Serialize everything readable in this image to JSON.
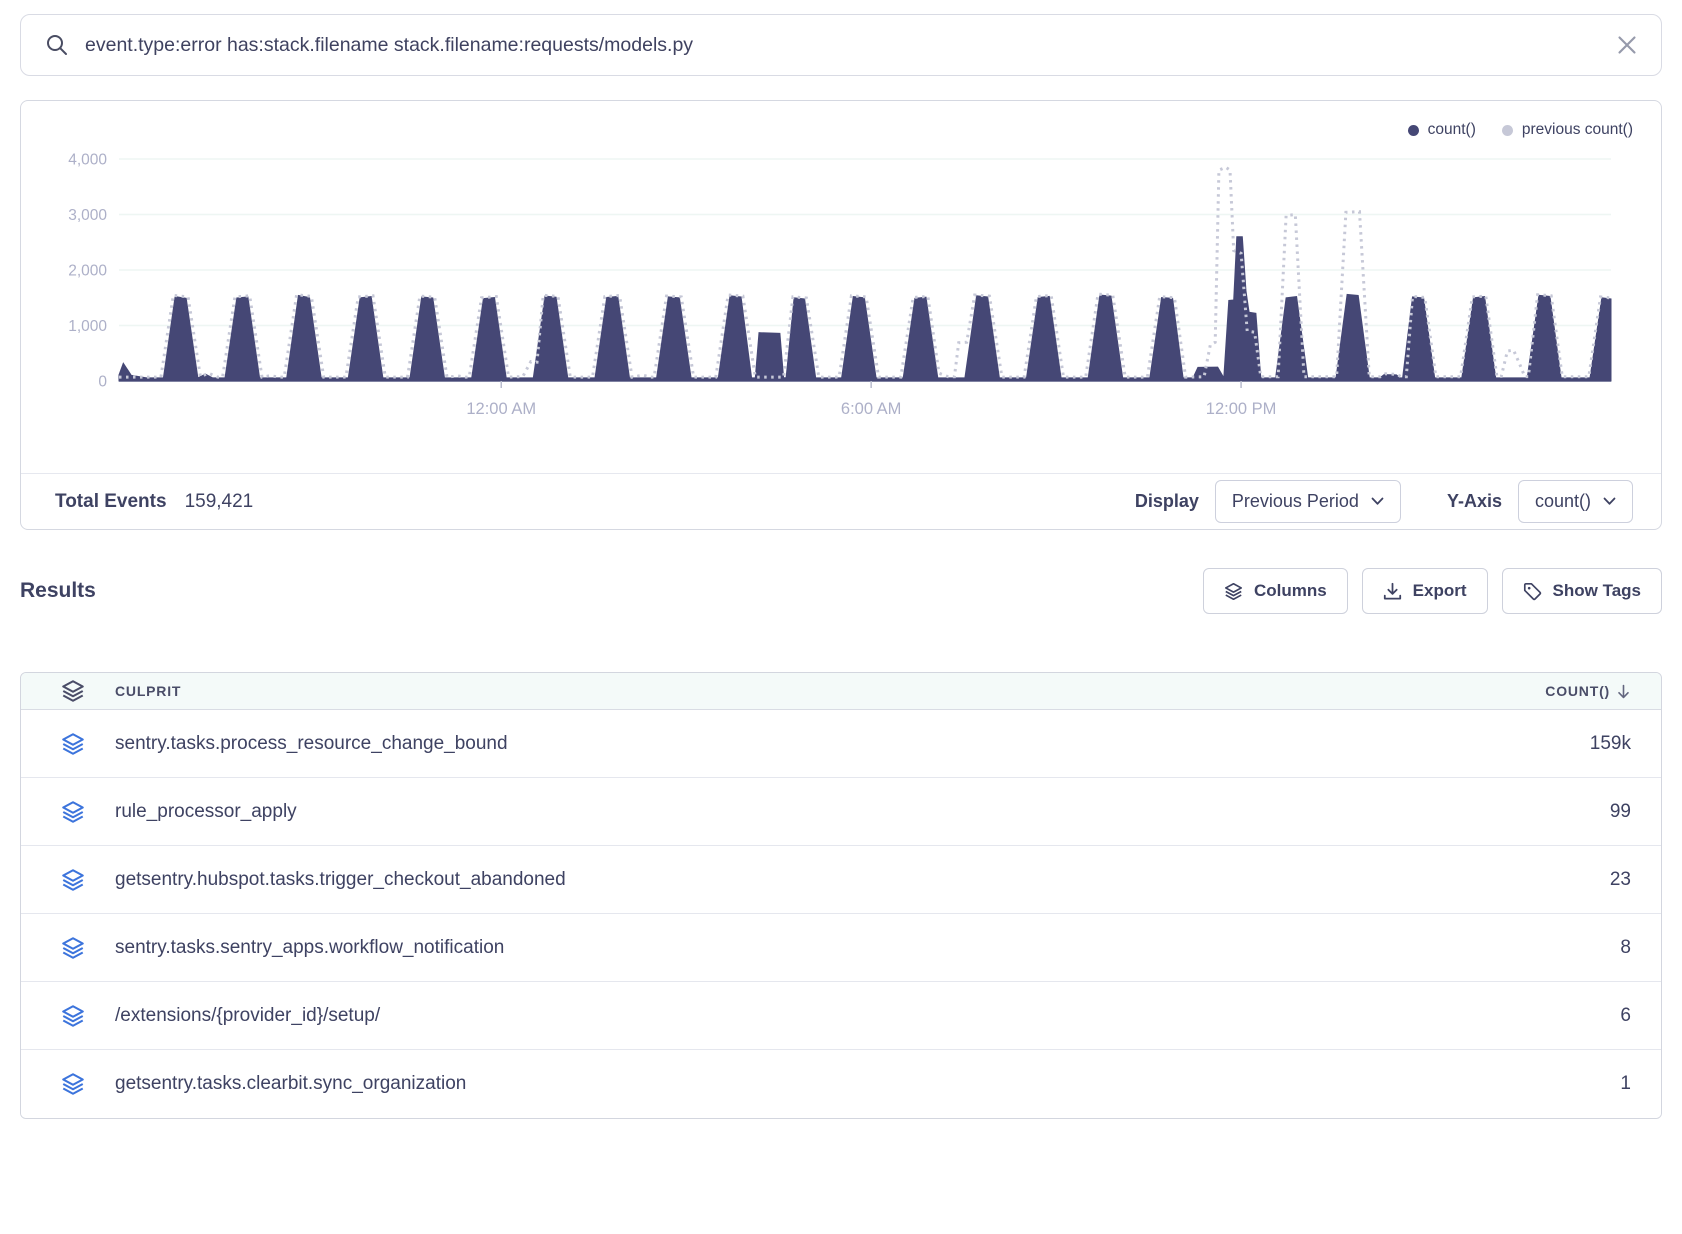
{
  "search": {
    "query": "event.type:error has:stack.filename stack.filename:requests/models.py"
  },
  "chart": {
    "footer": {
      "total_events_label": "Total Events",
      "total_events_value": "159,421",
      "display_label": "Display",
      "display_value": "Previous Period",
      "yaxis_label": "Y-Axis",
      "yaxis_value": "count()"
    }
  },
  "chart_data": {
    "type": "area",
    "grid": true,
    "legend_position": "top-right",
    "xlim": [
      0,
      24.2
    ],
    "ylim": [
      0,
      4000
    ],
    "x_unit": "hours (24h window, ~6:00 PM to ~6:00 PM)",
    "x_ticks": [
      {
        "h": 6.2,
        "label": "12:00 AM"
      },
      {
        "h": 12.2,
        "label": "6:00 AM"
      },
      {
        "h": 18.2,
        "label": "12:00 PM"
      }
    ],
    "y_ticks": [
      {
        "v": 0,
        "label": "0"
      },
      {
        "v": 1000,
        "label": "1,000"
      },
      {
        "v": 2000,
        "label": "2,000"
      },
      {
        "v": 3000,
        "label": "3,000"
      },
      {
        "v": 4000,
        "label": "4,000"
      }
    ],
    "series": [
      {
        "name": "count()",
        "style": "area",
        "color": "#454775",
        "points": [
          [
            0,
            110
          ],
          [
            0.07,
            320
          ],
          [
            0.2,
            100
          ],
          [
            0.45,
            55
          ],
          [
            0.72,
            55
          ],
          [
            0.91,
            1520
          ],
          [
            1.09,
            1490
          ],
          [
            1.28,
            55
          ],
          [
            1.4,
            125
          ],
          [
            1.52,
            55
          ],
          [
            1.72,
            55
          ],
          [
            1.91,
            1495
          ],
          [
            2.09,
            1515
          ],
          [
            2.28,
            55
          ],
          [
            2.72,
            55
          ],
          [
            2.91,
            1540
          ],
          [
            3.09,
            1505
          ],
          [
            3.28,
            55
          ],
          [
            3.72,
            55
          ],
          [
            3.91,
            1500
          ],
          [
            4.09,
            1520
          ],
          [
            4.28,
            55
          ],
          [
            4.72,
            55
          ],
          [
            4.91,
            1515
          ],
          [
            5.09,
            1495
          ],
          [
            5.28,
            55
          ],
          [
            5.72,
            55
          ],
          [
            5.91,
            1485
          ],
          [
            6.09,
            1505
          ],
          [
            6.28,
            55
          ],
          [
            6.72,
            55
          ],
          [
            6.91,
            1530
          ],
          [
            7.09,
            1510
          ],
          [
            7.28,
            55
          ],
          [
            7.72,
            55
          ],
          [
            7.91,
            1505
          ],
          [
            8.09,
            1525
          ],
          [
            8.28,
            55
          ],
          [
            8.72,
            55
          ],
          [
            8.91,
            1515
          ],
          [
            9.09,
            1500
          ],
          [
            9.28,
            55
          ],
          [
            9.72,
            55
          ],
          [
            9.91,
            1535
          ],
          [
            10.09,
            1515
          ],
          [
            10.26,
            55
          ],
          [
            10.32,
            60
          ],
          [
            10.38,
            870
          ],
          [
            10.72,
            860
          ],
          [
            10.78,
            60
          ],
          [
            10.82,
            60
          ],
          [
            10.95,
            1500
          ],
          [
            11.12,
            1480
          ],
          [
            11.3,
            55
          ],
          [
            11.72,
            55
          ],
          [
            11.91,
            1520
          ],
          [
            12.09,
            1500
          ],
          [
            12.28,
            55
          ],
          [
            12.72,
            55
          ],
          [
            12.91,
            1490
          ],
          [
            13.09,
            1510
          ],
          [
            13.28,
            55
          ],
          [
            13.72,
            55
          ],
          [
            13.91,
            1535
          ],
          [
            14.09,
            1515
          ],
          [
            14.28,
            55
          ],
          [
            14.72,
            55
          ],
          [
            14.91,
            1505
          ],
          [
            15.09,
            1525
          ],
          [
            15.28,
            55
          ],
          [
            15.72,
            55
          ],
          [
            15.91,
            1550
          ],
          [
            16.09,
            1530
          ],
          [
            16.28,
            55
          ],
          [
            16.72,
            55
          ],
          [
            16.91,
            1505
          ],
          [
            17.09,
            1490
          ],
          [
            17.26,
            55
          ],
          [
            17.42,
            55
          ],
          [
            17.5,
            245
          ],
          [
            17.82,
            250
          ],
          [
            17.92,
            60
          ],
          [
            18.0,
            1450
          ],
          [
            18.08,
            1460
          ],
          [
            18.13,
            2600
          ],
          [
            18.22,
            2600
          ],
          [
            18.28,
            1620
          ],
          [
            18.33,
            1240
          ],
          [
            18.44,
            1220
          ],
          [
            18.52,
            55
          ],
          [
            18.76,
            55
          ],
          [
            18.93,
            1500
          ],
          [
            19.1,
            1520
          ],
          [
            19.28,
            55
          ],
          [
            19.74,
            55
          ],
          [
            19.92,
            1560
          ],
          [
            20.1,
            1540
          ],
          [
            20.28,
            55
          ],
          [
            20.45,
            55
          ],
          [
            20.52,
            115
          ],
          [
            20.72,
            110
          ],
          [
            20.78,
            55
          ],
          [
            20.82,
            55
          ],
          [
            20.98,
            1515
          ],
          [
            21.16,
            1495
          ],
          [
            21.34,
            55
          ],
          [
            21.78,
            55
          ],
          [
            21.97,
            1500
          ],
          [
            22.15,
            1520
          ],
          [
            22.33,
            55
          ],
          [
            22.84,
            55
          ],
          [
            23.03,
            1545
          ],
          [
            23.21,
            1525
          ],
          [
            23.39,
            55
          ],
          [
            23.86,
            55
          ],
          [
            24.05,
            1500
          ],
          [
            24.2,
            1480
          ]
        ]
      },
      {
        "name": "previous count()",
        "style": "dotted-line",
        "color": "#c6c8d7",
        "points": [
          [
            0,
            70
          ],
          [
            0.4,
            70
          ],
          [
            0.68,
            70
          ],
          [
            0.88,
            1545
          ],
          [
            1.12,
            1515
          ],
          [
            1.32,
            75
          ],
          [
            1.45,
            140
          ],
          [
            1.6,
            70
          ],
          [
            1.68,
            70
          ],
          [
            1.88,
            1515
          ],
          [
            2.12,
            1535
          ],
          [
            2.32,
            70
          ],
          [
            2.45,
            95
          ],
          [
            2.6,
            70
          ],
          [
            2.68,
            70
          ],
          [
            2.88,
            1555
          ],
          [
            3.12,
            1525
          ],
          [
            3.32,
            70
          ],
          [
            3.68,
            70
          ],
          [
            3.88,
            1515
          ],
          [
            4.12,
            1535
          ],
          [
            4.32,
            70
          ],
          [
            4.68,
            70
          ],
          [
            4.88,
            1530
          ],
          [
            5.12,
            1510
          ],
          [
            5.32,
            70
          ],
          [
            5.5,
            90
          ],
          [
            5.62,
            70
          ],
          [
            5.68,
            70
          ],
          [
            5.88,
            1500
          ],
          [
            6.12,
            1520
          ],
          [
            6.32,
            70
          ],
          [
            6.55,
            80
          ],
          [
            6.68,
            350
          ],
          [
            6.78,
            340
          ],
          [
            6.88,
            1545
          ],
          [
            7.12,
            1525
          ],
          [
            7.32,
            70
          ],
          [
            7.68,
            70
          ],
          [
            7.88,
            1520
          ],
          [
            8.12,
            1540
          ],
          [
            8.32,
            70
          ],
          [
            8.5,
            105
          ],
          [
            8.62,
            70
          ],
          [
            8.68,
            70
          ],
          [
            8.88,
            1530
          ],
          [
            9.12,
            1515
          ],
          [
            9.32,
            70
          ],
          [
            9.68,
            70
          ],
          [
            9.88,
            1550
          ],
          [
            10.12,
            1530
          ],
          [
            10.32,
            70
          ],
          [
            10.78,
            70
          ],
          [
            10.93,
            1515
          ],
          [
            11.15,
            1495
          ],
          [
            11.35,
            70
          ],
          [
            11.68,
            70
          ],
          [
            11.88,
            1535
          ],
          [
            12.12,
            1515
          ],
          [
            12.32,
            70
          ],
          [
            12.68,
            70
          ],
          [
            12.88,
            1505
          ],
          [
            13.12,
            1525
          ],
          [
            13.3,
            140
          ],
          [
            13.45,
            75
          ],
          [
            13.55,
            75
          ],
          [
            13.62,
            690
          ],
          [
            13.75,
            700
          ],
          [
            13.88,
            1550
          ],
          [
            14.12,
            1530
          ],
          [
            14.32,
            70
          ],
          [
            14.68,
            70
          ],
          [
            14.88,
            1520
          ],
          [
            15.12,
            1540
          ],
          [
            15.32,
            70
          ],
          [
            15.68,
            70
          ],
          [
            15.88,
            1565
          ],
          [
            16.12,
            1545
          ],
          [
            16.32,
            70
          ],
          [
            16.68,
            70
          ],
          [
            16.88,
            1520
          ],
          [
            17.12,
            1500
          ],
          [
            17.3,
            70
          ],
          [
            17.6,
            75
          ],
          [
            17.7,
            650
          ],
          [
            17.78,
            700
          ],
          [
            17.84,
            3800
          ],
          [
            17.95,
            3850
          ],
          [
            18.02,
            3800
          ],
          [
            18.08,
            2350
          ],
          [
            18.2,
            2300
          ],
          [
            18.3,
            900
          ],
          [
            18.42,
            880
          ],
          [
            18.52,
            75
          ],
          [
            18.8,
            75
          ],
          [
            18.93,
            2980
          ],
          [
            19.08,
            3000
          ],
          [
            19.22,
            75
          ],
          [
            19.75,
            75
          ],
          [
            19.9,
            3040
          ],
          [
            20.12,
            3050
          ],
          [
            20.28,
            75
          ],
          [
            20.46,
            75
          ],
          [
            20.54,
            130
          ],
          [
            20.72,
            120
          ],
          [
            20.8,
            75
          ],
          [
            20.88,
            75
          ],
          [
            20.98,
            1525
          ],
          [
            21.18,
            1505
          ],
          [
            21.36,
            75
          ],
          [
            21.76,
            75
          ],
          [
            21.95,
            1515
          ],
          [
            22.17,
            1530
          ],
          [
            22.35,
            80
          ],
          [
            22.42,
            85
          ],
          [
            22.52,
            540
          ],
          [
            22.62,
            555
          ],
          [
            22.72,
            300
          ],
          [
            22.8,
            80
          ],
          [
            22.86,
            80
          ],
          [
            23.01,
            1555
          ],
          [
            23.23,
            1535
          ],
          [
            23.41,
            75
          ],
          [
            23.84,
            75
          ],
          [
            24.03,
            1515
          ],
          [
            24.2,
            1495
          ]
        ]
      }
    ]
  },
  "results": {
    "title": "Results",
    "buttons": [
      {
        "label": "Columns",
        "icon": "layers-icon"
      },
      {
        "label": "Export",
        "icon": "download-icon"
      },
      {
        "label": "Show Tags",
        "icon": "tag-icon"
      }
    ],
    "table": {
      "columns": [
        {
          "label": "CULPRIT",
          "icon": "stack-icon"
        },
        {
          "label": "COUNT()",
          "sort": "desc",
          "icon": "arrow-down-icon"
        }
      ],
      "rows": [
        {
          "culprit": "sentry.tasks.process_resource_change_bound",
          "count": "159k"
        },
        {
          "culprit": "rule_processor_apply",
          "count": "99"
        },
        {
          "culprit": "getsentry.hubspot.tasks.trigger_checkout_abandoned",
          "count": "23"
        },
        {
          "culprit": "sentry.tasks.sentry_apps.workflow_notification",
          "count": "8"
        },
        {
          "culprit": "/extensions/{provider_id}/setup/",
          "count": "6"
        },
        {
          "culprit": "getsentry.tasks.clearbit.sync_organization",
          "count": "1"
        }
      ]
    }
  },
  "colors": {
    "series_count": "#454775",
    "series_previous": "#c6c8d7",
    "axis_label": "#adb0c8",
    "axis_line": "#b9bcce",
    "grid_line": "#eef6f3",
    "table_header_bg": "#f4faf9",
    "row_icon_blue": "#3c74dc",
    "text_navy": "#3e4262"
  }
}
